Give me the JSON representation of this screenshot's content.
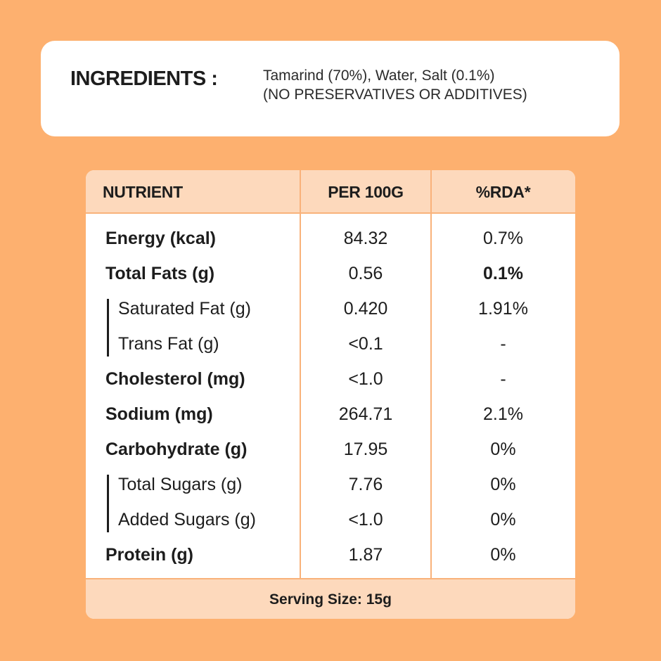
{
  "ingredients": {
    "title": "INGREDIENTS :",
    "line1": "Tamarind (70%), Water, Salt (0.1%)",
    "line2": "(NO PRESERVATIVES OR ADDITIVES)"
  },
  "table": {
    "headers": [
      "NUTRIENT",
      "PER 100G",
      "%RDA*"
    ],
    "rows": [
      {
        "name": "Energy (kcal)",
        "value": "84.32",
        "rda": "0.7%"
      },
      {
        "name": "Total Fats (g)",
        "value": "0.56",
        "rda": "0.1%"
      },
      {
        "name": "Saturated Fat (g)",
        "value": "0.420",
        "rda": "1.91%"
      },
      {
        "name": "Trans Fat (g)",
        "value": "<0.1",
        "rda": "-"
      },
      {
        "name": "Cholesterol (mg)",
        "value": "<1.0",
        "rda": "-"
      },
      {
        "name": "Sodium (mg)",
        "value": "264.71",
        "rda": "2.1%"
      },
      {
        "name": "Carbohydrate (g)",
        "value": "17.95",
        "rda": "0%"
      },
      {
        "name": "Total Sugars (g)",
        "value": "7.76",
        "rda": "0%"
      },
      {
        "name": "Added Sugars  (g)",
        "value": "<1.0",
        "rda": "0%"
      },
      {
        "name": "Protein (g)",
        "value": "1.87",
        "rda": "0%"
      }
    ],
    "footer": "Serving Size:  15g"
  },
  "colors": {
    "background": "#FDB06F",
    "header": "#FDD9BC",
    "border": "#F9B27A"
  }
}
